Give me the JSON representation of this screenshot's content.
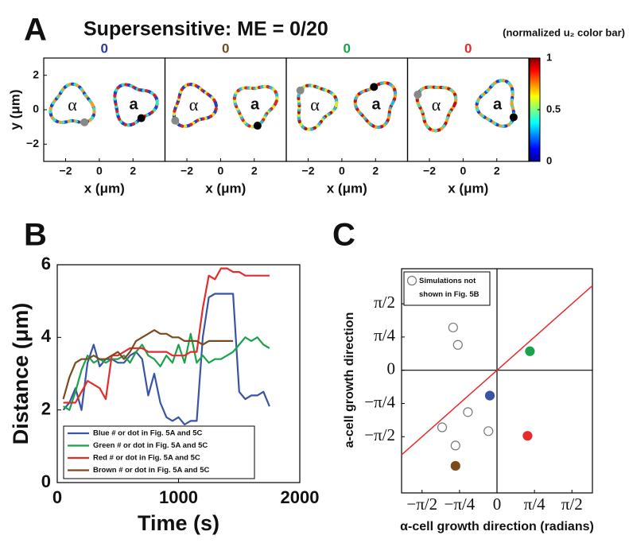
{
  "title": "Supersensitive: ME = 0/20",
  "panel_labels": [
    "A",
    "B",
    "C"
  ],
  "chart_data": [
    {
      "type": "contour",
      "title": "0",
      "title_color": "#2b3a9a",
      "xlim": [
        -3.3,
        3.9
      ],
      "xticks": [
        {
          "value": -2,
          "label": "−2"
        },
        0,
        2
      ],
      "ylim": [
        -3,
        3
      ],
      "yticks": [
        {
          "value": -2,
          "label": "−2"
        },
        0,
        2
      ],
      "xlabel": "x (μm)",
      "ylabel": "y (μm)",
      "cells": [
        "α",
        "a"
      ]
    },
    {
      "type": "contour",
      "title": "0",
      "title_color": "#7a4a1c",
      "xlim": [
        -3.3,
        3.9
      ],
      "xticks": [
        {
          "value": -2,
          "label": "−2"
        },
        0,
        2
      ],
      "ylim": [
        -3,
        3
      ],
      "xlabel": "x (μm)",
      "cells": [
        "α",
        "a"
      ]
    },
    {
      "type": "contour",
      "title": "0",
      "title_color": "#1aa34a",
      "xlim": [
        -3.3,
        3.9
      ],
      "xticks": [
        {
          "value": -2,
          "label": "−2"
        },
        0,
        2
      ],
      "ylim": [
        -3,
        3
      ],
      "xlabel": "x (μm)",
      "cells": [
        "α",
        "a"
      ]
    },
    {
      "type": "contour",
      "title": "0",
      "title_color": "#e52b2b",
      "xlim": [
        -3.3,
        3.9
      ],
      "xticks": [
        {
          "value": -2,
          "label": "−2"
        },
        0,
        2
      ],
      "ylim": [
        -3,
        3
      ],
      "xlabel": "x (μm)",
      "cells": [
        "α",
        "a"
      ]
    },
    {
      "type": "colorbar",
      "title": "(normalized u₂ color bar)",
      "ylim": [
        0,
        1
      ],
      "yticks": [
        0,
        0.5,
        1
      ]
    },
    {
      "type": "line",
      "xlabel": "Time (s)",
      "ylabel": "Distance (μm)",
      "xlim": [
        0,
        2000
      ],
      "xticks": [
        0,
        1000,
        2000
      ],
      "ylim": [
        0,
        6
      ],
      "yticks": [
        0,
        2,
        4,
        6
      ],
      "x": [
        50,
        100,
        150,
        200,
        250,
        300,
        350,
        400,
        450,
        500,
        550,
        600,
        650,
        700,
        750,
        800,
        850,
        900,
        950,
        1000,
        1050,
        1100,
        1150,
        1200,
        1250,
        1300,
        1350,
        1400,
        1450,
        1500,
        1550,
        1600,
        1650,
        1700,
        1750
      ],
      "series": [
        {
          "name": "Blue # or dot in Fig. 5A and 5C",
          "color": "#3a54a4",
          "values": [
            2.0,
            2.2,
            2.6,
            2.0,
            3.3,
            3.8,
            3.2,
            3.4,
            3.4,
            3.3,
            3.3,
            3.5,
            3.6,
            3.4,
            2.4,
            3.0,
            2.2,
            1.8,
            1.7,
            1.8,
            1.6,
            1.7,
            1.7,
            4.0,
            5.1,
            5.2,
            5.2,
            5.2,
            5.2,
            2.5,
            2.3,
            2.4,
            2.4,
            2.5,
            2.1
          ]
        },
        {
          "name": "Green # or dot in Fig. 5A and 5C",
          "color": "#1aa34a",
          "values": [
            2.1,
            2.0,
            2.5,
            3.1,
            3.5,
            3.3,
            3.4,
            3.3,
            3.4,
            3.4,
            3.5,
            3.3,
            3.6,
            3.8,
            3.5,
            3.4,
            3.2,
            3.5,
            3.3,
            3.8,
            3.3,
            4.1,
            3.3,
            3.5,
            3.3,
            3.4,
            3.4,
            3.5,
            3.6,
            3.8,
            4.0,
            3.9,
            4.0,
            3.8,
            3.7
          ]
        },
        {
          "name": "Red # or dot in Fig. 5A and 5C",
          "color": "#e52b2b",
          "values": [
            2.2,
            2.2,
            2.2,
            2.5,
            2.8,
            2.7,
            2.6,
            2.3,
            3.5,
            3.5,
            3.6,
            3.7,
            3.7,
            3.7,
            3.6,
            3.6,
            3.6,
            3.6,
            3.5,
            3.5,
            3.5,
            3.6,
            3.6,
            4.8,
            5.7,
            5.6,
            5.9,
            5.9,
            5.8,
            5.8,
            5.7,
            5.7,
            5.7,
            5.7,
            5.7
          ]
        },
        {
          "name": "Brown # or dot in Fig. 5A and 5C",
          "color": "#7a4a1c",
          "values": [
            2.3,
            2.9,
            3.3,
            3.4,
            3.4,
            3.5,
            3.4,
            3.4,
            3.5,
            3.6,
            3.4,
            3.6,
            3.9,
            4.0,
            4.1,
            4.2,
            4.1,
            4.1,
            4.0,
            4.0,
            3.9,
            3.9,
            3.9,
            3.8,
            3.9,
            3.9,
            3.9,
            3.9,
            3.9,
            null,
            null,
            null,
            null,
            null,
            null
          ]
        }
      ]
    },
    {
      "type": "scatter",
      "xlabel": "α-cell growth direction (radians)",
      "ylabel": "a-cell growth direction",
      "xlim": [
        -2,
        2
      ],
      "xticks": [
        {
          "value": -1.5708,
          "label": "−π/2"
        },
        {
          "value": -0.7854,
          "label": "−π/4"
        },
        0,
        {
          "value": 0.7854,
          "label": "π/4"
        },
        {
          "value": 1.5708,
          "label": "π/2"
        }
      ],
      "ylim": [
        -2.9,
        2.4
      ],
      "yticks": [
        {
          "value": -1.5708,
          "label": "−π/2"
        },
        {
          "value": -0.7854,
          "label": "−π/4"
        },
        0,
        {
          "value": 0.7854,
          "label": "π/4"
        },
        {
          "value": 1.5708,
          "label": "π/2"
        }
      ],
      "series": [
        {
          "name": "Simulations not shown in Fig. 5B",
          "color": "#777777",
          "hollow": true,
          "x": [
            -0.92,
            -0.82,
            -0.61,
            -1.15,
            -0.87,
            -0.18
          ],
          "values": [
            1.01,
            0.6,
            -0.99,
            -1.35,
            -1.78,
            -1.44
          ]
        },
        {
          "color": "#3a54a4",
          "x": [
            -0.15
          ],
          "values": [
            -0.6
          ]
        },
        {
          "color": "#1aa34a",
          "x": [
            0.69
          ],
          "values": [
            0.45
          ]
        },
        {
          "color": "#e52b2b",
          "x": [
            0.64
          ],
          "values": [
            -1.55
          ]
        },
        {
          "color": "#7a4a1c",
          "x": [
            -0.87
          ],
          "values": [
            -2.26
          ]
        }
      ]
    }
  ]
}
